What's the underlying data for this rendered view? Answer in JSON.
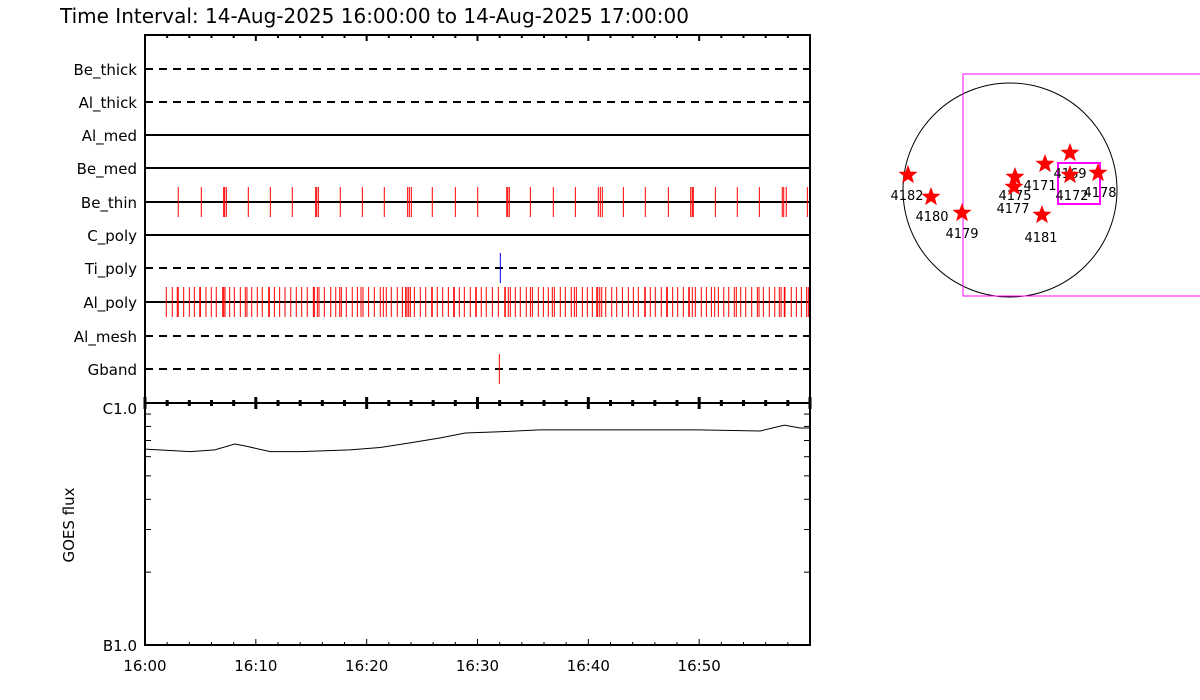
{
  "title": "Time Interval: 14-Aug-2025 16:00:00 to 14-Aug-2025 17:00:00",
  "chart_data": [
    {
      "type": "timeline",
      "xlabel": "",
      "x_tick_labels": [
        "16:00",
        "16:10",
        "16:20",
        "16:30",
        "16:40",
        "16:50"
      ],
      "x_range_minutes": [
        0,
        60
      ],
      "colors": {
        "mark": "#ff0000",
        "ti_mark": "#0000ff",
        "line": "#000000"
      },
      "filters": [
        {
          "name": "Be_thick",
          "style": "dashed",
          "events_min": []
        },
        {
          "name": "Al_thick",
          "style": "dashed",
          "events_min": []
        },
        {
          "name": "Al_med",
          "style": "solid",
          "events_min": []
        },
        {
          "name": "Be_med",
          "style": "solid",
          "events_min": []
        },
        {
          "name": "Be_thin",
          "style": "solid",
          "events_min": [
            3.0,
            5.08,
            7.1,
            7.19,
            7.34,
            9.32,
            11.31,
            13.29,
            15.4,
            15.49,
            15.64,
            17.62,
            19.61,
            21.59,
            23.7,
            23.85,
            24.03,
            25.92,
            28.0,
            30.02,
            32.64,
            32.73,
            32.87,
            34.77,
            36.84,
            38.83,
            40.9,
            41.08,
            41.26,
            43.16,
            45.14,
            47.22,
            49.24,
            49.38,
            49.47,
            51.46,
            53.44,
            55.43,
            57.5,
            57.63,
            57.86,
            59.76
          ]
        },
        {
          "name": "C_poly",
          "style": "solid",
          "events_min": []
        },
        {
          "name": "Ti_poly",
          "style": "dashed",
          "events_min": [
            32.06
          ],
          "color": "#0000ff"
        },
        {
          "name": "Al_poly",
          "style": "solid",
          "events_min": [
            1.92,
            2.46,
            2.91,
            3.0,
            3.49,
            4.0,
            4.45,
            4.94,
            5.0,
            5.5,
            5.98,
            6.43,
            7.01,
            7.1,
            7.22,
            7.64,
            8.06,
            8.6,
            9.05,
            9.2,
            9.63,
            10.13,
            10.58,
            11.16,
            11.22,
            11.67,
            12.15,
            12.63,
            13.15,
            13.65,
            14.14,
            14.64,
            15.19,
            15.28,
            15.55,
            15.7,
            16.18,
            16.76,
            17.21,
            17.57,
            17.71,
            18.16,
            18.7,
            19.16,
            19.49,
            19.67,
            20.18,
            20.69,
            21.23,
            21.5,
            21.77,
            22.22,
            22.76,
            23.22,
            23.52,
            23.64,
            23.79,
            23.94,
            24.3,
            24.84,
            25.33,
            25.87,
            25.92,
            26.37,
            26.86,
            27.37,
            27.85,
            27.91,
            28.36,
            28.81,
            29.35,
            29.84,
            29.89,
            30.34,
            30.79,
            31.34,
            31.88,
            32.46,
            32.51,
            32.78,
            32.96,
            33.41,
            33.86,
            34.4,
            34.77,
            34.95,
            35.49,
            35.94,
            36.39,
            36.75,
            36.93,
            37.47,
            37.92,
            38.46,
            38.74,
            38.92,
            39.46,
            39.91,
            40.36,
            40.76,
            40.85,
            41.03,
            41.21,
            41.57,
            42.11,
            42.56,
            43.07,
            43.61,
            44.06,
            44.51,
            45.09,
            45.14,
            45.59,
            46.04,
            46.58,
            47.07,
            47.13,
            47.61,
            48.06,
            48.57,
            49.06,
            49.11,
            49.38,
            49.65,
            50.19,
            50.65,
            51.1,
            51.4,
            51.73,
            52.22,
            52.67,
            53.17,
            53.35,
            53.75,
            54.2,
            54.74,
            55.25,
            55.4,
            55.79,
            56.33,
            56.82,
            57.23,
            57.39,
            57.68,
            57.74,
            58.31,
            58.77,
            59.22,
            59.7,
            59.85
          ]
        },
        {
          "name": "Al_mesh",
          "style": "dashed",
          "events_min": []
        },
        {
          "name": "Gband",
          "style": "dashed",
          "events_min": [
            31.97
          ]
        }
      ]
    },
    {
      "type": "line",
      "ylabel": "GOES flux",
      "y_scale": "log",
      "y_tick_labels": [
        "B1.0",
        "C1.0"
      ],
      "ylim_wm2": [
        1e-07,
        1e-06
      ],
      "x_tick_labels": [
        "16:00",
        "16:10",
        "16:20",
        "16:30",
        "16:40",
        "16:50"
      ],
      "series": [
        {
          "x_min": [
            0,
            4.1,
            6.3,
            8.1,
            9.0,
            11.3,
            14.0,
            18.5,
            21.2,
            23.9,
            26.6,
            28.9,
            32.0,
            35.6,
            41.0,
            50.0,
            55.5,
            57.7,
            59.1,
            60
          ],
          "flux": [
            6.45e-07,
            6.3e-07,
            6.4e-07,
            6.77e-07,
            6.65e-07,
            6.3e-07,
            6.3e-07,
            6.4e-07,
            6.55e-07,
            6.84e-07,
            7.17e-07,
            7.52e-07,
            7.6e-07,
            7.74e-07,
            7.74e-07,
            7.74e-07,
            7.66e-07,
            8.1e-07,
            7.88e-07,
            7.88e-07
          ]
        }
      ]
    }
  ],
  "solar_map": {
    "box_color": "#ff00ff",
    "star_color": "#ff0000",
    "active_regions": [
      "4182",
      "4180",
      "4179",
      "4175",
      "4177",
      "4171",
      "4169",
      "4172",
      "4178",
      "4181"
    ]
  }
}
